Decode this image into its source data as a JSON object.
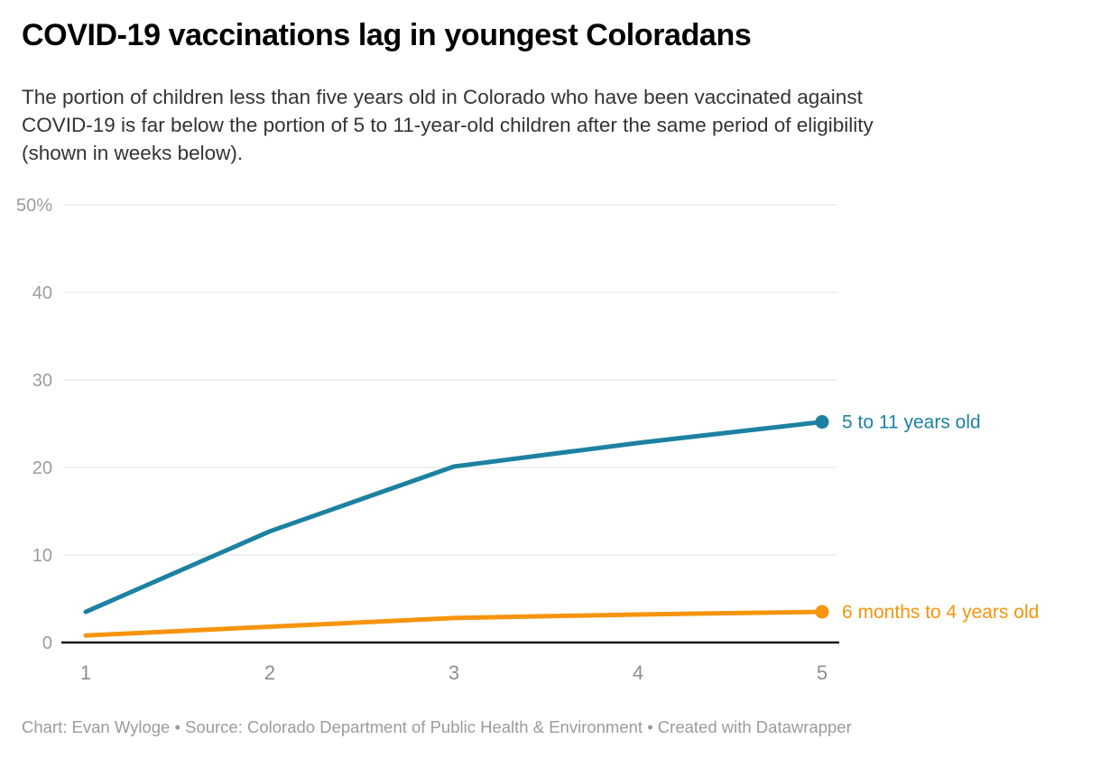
{
  "header": {
    "title": "COVID-19 vaccinations lag in youngest Coloradans",
    "description": "The portion of children less than five years old in Colorado who have been vaccinated against\nCOVID-19 is far below the portion of 5 to 11-year-old children after the same period of eligibility\n(shown in weeks below)."
  },
  "chart_data": {
    "type": "line",
    "x": [
      1,
      2,
      3,
      4,
      5
    ],
    "x_tick_labels": [
      "1",
      "2",
      "3",
      "4",
      "5"
    ],
    "xlabel": "",
    "ylabel": "",
    "ylim": [
      0,
      50
    ],
    "ytick_values": [
      0,
      10,
      20,
      30,
      40,
      50
    ],
    "ytick_labels": [
      "0",
      "10",
      "20",
      "30",
      "40",
      "50%"
    ],
    "grid": true,
    "legend_position": "end-of-line-labels",
    "series": [
      {
        "name": "5 to 11 years old",
        "color": "#1d81a2",
        "values": [
          3.5,
          12.7,
          20.1,
          22.8,
          25.2
        ]
      },
      {
        "name": "6 months to 4 years old",
        "color": "#f7940d",
        "values": [
          0.8,
          1.8,
          2.8,
          3.2,
          3.5
        ]
      }
    ],
    "colors": {
      "gridline": "#e2e2e2",
      "baseline": "#191919",
      "y_tick_label": "#9c9c9c",
      "x_tick_label": "#8e8e8e"
    }
  },
  "footer": {
    "credit": "Chart: Evan Wyloge • Source: Colorado Department of Public Health & Environment • Created with Datawrapper"
  }
}
